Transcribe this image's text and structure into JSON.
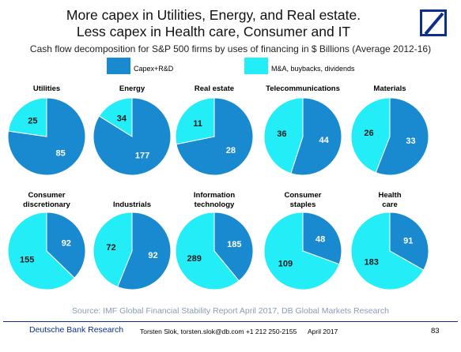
{
  "header": {
    "title_line1": "More capex in Utilities, Energy, and Real estate.",
    "title_line2": "Less capex in Health care, Consumer and IT",
    "subtitle": "Cash flow decomposition for S&P 500 firms by uses of financing in $ Billions (Average 2012-16)"
  },
  "logo": "deutsche-bank-logo",
  "colors": {
    "capex": "#1a8ad0",
    "ma": "#23edf6",
    "brand": "#0d2f8c"
  },
  "legend": [
    {
      "label": "Capex+R&D",
      "color": "#1a8ad0"
    },
    {
      "label": "M&A, buybacks, dividends",
      "color": "#23edf6"
    }
  ],
  "chart_data": {
    "type": "pie",
    "series_names": [
      "Capex+R&D",
      "M&A, buybacks, dividends"
    ],
    "units": "$ Billions",
    "pies": [
      {
        "label": "Utilities",
        "capex": 85,
        "ma": 25
      },
      {
        "label": "Energy",
        "capex": 177,
        "ma": 34
      },
      {
        "label": "Real estate",
        "capex": 28,
        "ma": 11
      },
      {
        "label": "Telecommunications",
        "capex": 44,
        "ma": 36
      },
      {
        "label": "Materials",
        "capex": 33,
        "ma": 26
      },
      {
        "label": "Consumer discretionary",
        "capex": 92,
        "ma": 155
      },
      {
        "label": "Industrials",
        "capex": 92,
        "ma": 72
      },
      {
        "label": "Information technology",
        "capex": 185,
        "ma": 289
      },
      {
        "label": "Consumer staples",
        "capex": 48,
        "ma": 109
      },
      {
        "label": "Health care",
        "capex": 91,
        "ma": 183
      }
    ]
  },
  "source": "Source: IMF Global Financial Stability Report April 2017, DB Global Markets Research",
  "footer": {
    "org": "Deutsche Bank Research",
    "author": "Torsten Slok, torsten.slok@db.com +1 212 250-2155",
    "date": "April 2017",
    "page": "83"
  }
}
